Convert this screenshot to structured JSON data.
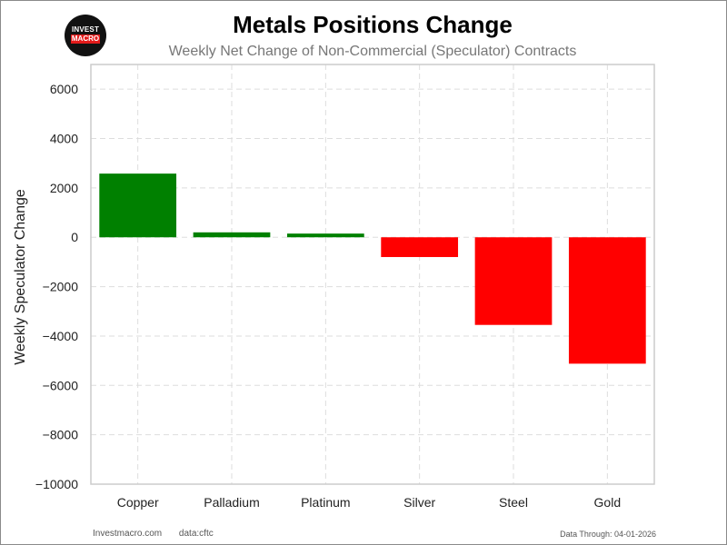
{
  "header": {
    "title": "Metals Positions Change",
    "subtitle": "Weekly Net Change of Non-Commercial (Speculator) Contracts"
  },
  "logo": {
    "top": "INVEST",
    "bottom": "MACRO"
  },
  "footer": {
    "site": "Investmacro.com",
    "source": "data:cftc",
    "data_through": "Data Through: 04-01-2026"
  },
  "colors": {
    "positive": "#008000",
    "negative": "#ff0000"
  },
  "chart_data": {
    "type": "bar",
    "categories": [
      "Copper",
      "Palladium",
      "Platinum",
      "Silver",
      "Steel",
      "Gold"
    ],
    "values": [
      2580,
      200,
      150,
      -800,
      -3550,
      -5120
    ],
    "ylabel": "Weekly Speculator Change",
    "xlabel": "",
    "ylim": [
      -10000,
      7000
    ],
    "yticks": [
      6000,
      4000,
      2000,
      0,
      -2000,
      -4000,
      -6000,
      -8000,
      -10000
    ],
    "ytick_labels": [
      "6000",
      "4000",
      "2000",
      "0",
      "−2000",
      "−4000",
      "−6000",
      "−8000",
      "−10000"
    ],
    "grid": true,
    "legend": "none"
  }
}
